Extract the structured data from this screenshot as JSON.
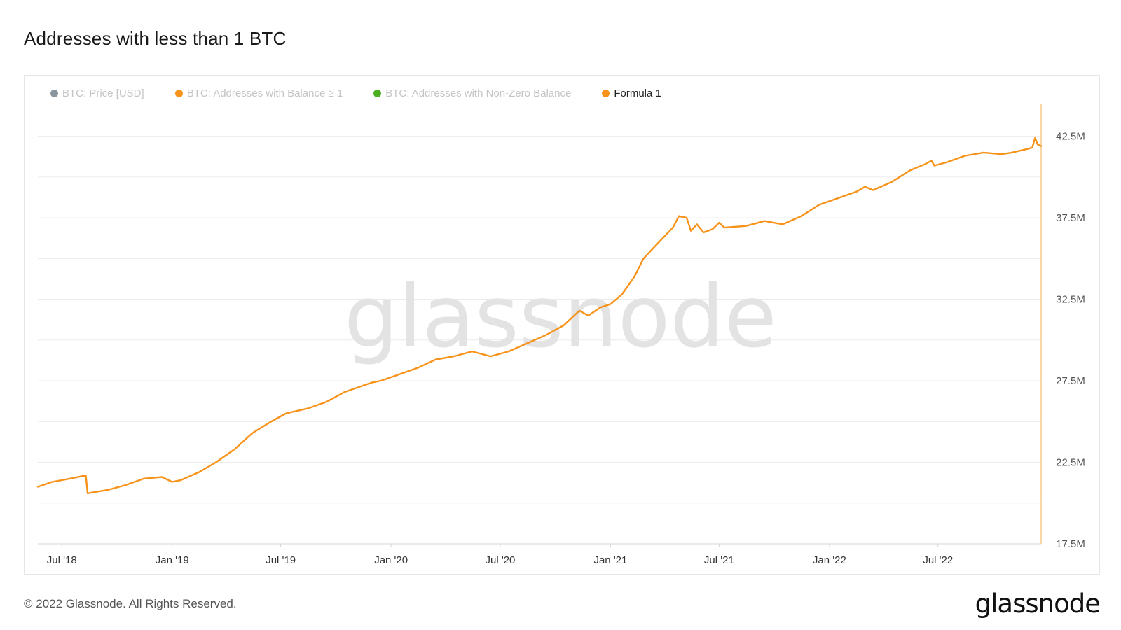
{
  "page": {
    "title": "Addresses with less than 1 BTC",
    "footer": "© 2022 Glassnode. All Rights Reserved.",
    "brand": "glassnode",
    "watermark": "glassnode"
  },
  "legend": [
    {
      "label": "BTC: Price [USD]",
      "color": "#8a959e",
      "active": false
    },
    {
      "label": "BTC: Addresses with Balance ≥ 1",
      "color": "#f7931a",
      "active": false
    },
    {
      "label": "BTC: Addresses with Non-Zero Balance",
      "color": "#4caf1f",
      "active": false
    },
    {
      "label": "Formula 1",
      "color": "#f7931a",
      "active": true
    }
  ],
  "chart_data": {
    "type": "line",
    "title": "Addresses with less than 1 BTC",
    "xlabel": "",
    "ylabel": "",
    "x_ticks": [
      "Jul '18",
      "Jan '19",
      "Jul '19",
      "Jan '20",
      "Jul '20",
      "Jan '21",
      "Jul '21",
      "Jan '22",
      "Jul '22"
    ],
    "y_ticks": [
      "17.5M",
      "22.5M",
      "27.5M",
      "32.5M",
      "37.5M",
      "42.5M"
    ],
    "ylim": [
      17.5,
      44.5
    ],
    "y_unit": "M",
    "grid": true,
    "legend_position": "top-left",
    "series": [
      {
        "name": "Formula 1",
        "color": "#f7931a",
        "points": [
          [
            "2018-05-22",
            21.0
          ],
          [
            "2018-06-15",
            21.3
          ],
          [
            "2018-07-15",
            21.5
          ],
          [
            "2018-08-10",
            21.7
          ],
          [
            "2018-08-13",
            20.6
          ],
          [
            "2018-09-15",
            20.8
          ],
          [
            "2018-10-15",
            21.1
          ],
          [
            "2018-11-15",
            21.5
          ],
          [
            "2018-12-15",
            21.6
          ],
          [
            "2019-01-01",
            21.3
          ],
          [
            "2019-01-15",
            21.4
          ],
          [
            "2019-02-15",
            21.9
          ],
          [
            "2019-03-15",
            22.5
          ],
          [
            "2019-04-15",
            23.3
          ],
          [
            "2019-05-15",
            24.3
          ],
          [
            "2019-06-15",
            25.0
          ],
          [
            "2019-07-10",
            25.5
          ],
          [
            "2019-08-15",
            25.8
          ],
          [
            "2019-09-15",
            26.2
          ],
          [
            "2019-10-15",
            26.8
          ],
          [
            "2019-11-15",
            27.2
          ],
          [
            "2019-12-01",
            27.4
          ],
          [
            "2019-12-15",
            27.5
          ],
          [
            "2020-01-15",
            27.9
          ],
          [
            "2020-02-15",
            28.3
          ],
          [
            "2020-03-15",
            28.8
          ],
          [
            "2020-04-15",
            29.0
          ],
          [
            "2020-05-15",
            29.3
          ],
          [
            "2020-06-15",
            29.0
          ],
          [
            "2020-07-15",
            29.3
          ],
          [
            "2020-08-15",
            29.8
          ],
          [
            "2020-09-15",
            30.3
          ],
          [
            "2020-10-15",
            30.9
          ],
          [
            "2020-11-10",
            31.8
          ],
          [
            "2020-11-25",
            31.5
          ],
          [
            "2020-12-15",
            32.0
          ],
          [
            "2021-01-01",
            32.2
          ],
          [
            "2021-01-20",
            32.8
          ],
          [
            "2021-02-10",
            33.9
          ],
          [
            "2021-02-25",
            35.0
          ],
          [
            "2021-03-20",
            35.9
          ],
          [
            "2021-04-15",
            36.9
          ],
          [
            "2021-04-25",
            37.6
          ],
          [
            "2021-05-08",
            37.5
          ],
          [
            "2021-05-15",
            36.7
          ],
          [
            "2021-05-25",
            37.1
          ],
          [
            "2021-06-05",
            36.6
          ],
          [
            "2021-06-20",
            36.8
          ],
          [
            "2021-07-01",
            37.2
          ],
          [
            "2021-07-10",
            36.9
          ],
          [
            "2021-08-15",
            37.0
          ],
          [
            "2021-09-15",
            37.3
          ],
          [
            "2021-10-15",
            37.1
          ],
          [
            "2021-11-15",
            37.6
          ],
          [
            "2021-12-15",
            38.3
          ],
          [
            "2022-01-15",
            38.7
          ],
          [
            "2022-02-15",
            39.1
          ],
          [
            "2022-03-01",
            39.4
          ],
          [
            "2022-03-15",
            39.2
          ],
          [
            "2022-04-15",
            39.7
          ],
          [
            "2022-05-15",
            40.4
          ],
          [
            "2022-06-10",
            40.8
          ],
          [
            "2022-06-20",
            41.0
          ],
          [
            "2022-06-25",
            40.7
          ],
          [
            "2022-07-15",
            40.9
          ],
          [
            "2022-08-15",
            41.3
          ],
          [
            "2022-09-15",
            41.5
          ],
          [
            "2022-10-15",
            41.4
          ],
          [
            "2022-11-01",
            41.5
          ],
          [
            "2022-11-25",
            41.7
          ],
          [
            "2022-12-05",
            41.8
          ],
          [
            "2022-12-10",
            42.4
          ],
          [
            "2022-12-14",
            42.0
          ],
          [
            "2022-12-20",
            41.9
          ]
        ]
      }
    ]
  }
}
